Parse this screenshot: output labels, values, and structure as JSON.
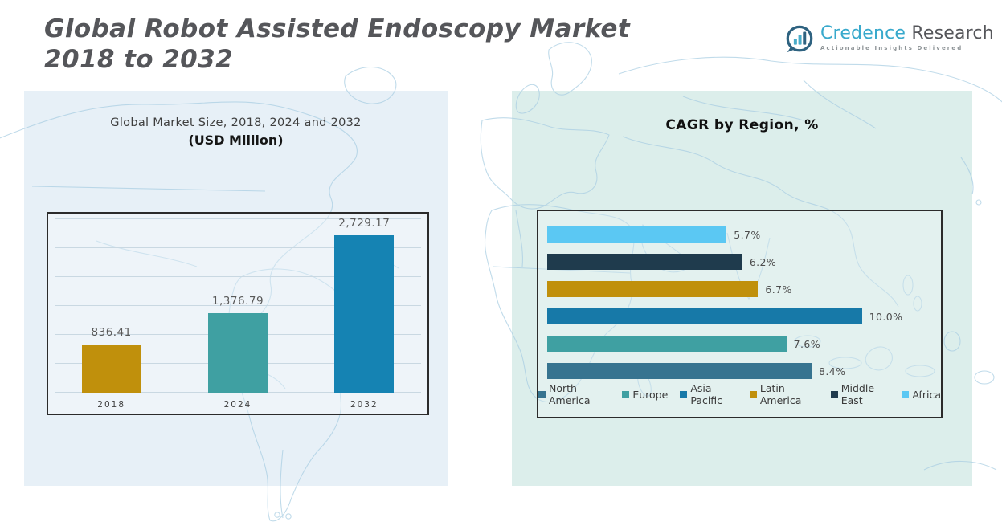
{
  "header": {
    "title_line1": "Global Robot Assisted Endoscopy Market",
    "title_line2": "2018 to 2032"
  },
  "logo": {
    "brand_primary": "Credence",
    "brand_secondary": "Research",
    "tagline": "Actionable Insights Delivered"
  },
  "colors": {
    "left_panel": "#E7F0F7",
    "right_panel": "#DCEEEB",
    "brand_teal": "#38A9CC",
    "title_gray": "#55565A",
    "map_line": "#ABCFE3",
    "chart_border": "#2B2B2B"
  },
  "chart_data": [
    {
      "type": "bar",
      "title": "Global Market Size, 2018, 2024 and 2032",
      "subtitle": "(USD Million)",
      "categories": [
        "2018",
        "2024",
        "2032"
      ],
      "values": [
        836.41,
        1376.79,
        2729.17
      ],
      "value_labels": [
        "836.41",
        "1,376.79",
        "2,729.17"
      ],
      "colors": [
        "#C0900C",
        "#3FA0A2",
        "#1583B3"
      ],
      "xlabel": "",
      "ylabel": "",
      "ylim": [
        0,
        3000
      ],
      "gridline_step": 500,
      "grid": true,
      "legend_position": "none"
    },
    {
      "type": "bar-horizontal",
      "title": "CAGR by Region, %",
      "rows": [
        {
          "region": "Africa",
          "value": 5.7,
          "label": "5.7%",
          "color": "#5BC8F3"
        },
        {
          "region": "Middle East",
          "value": 6.2,
          "label": "6.2%",
          "color": "#1F3B4D"
        },
        {
          "region": "Latin America",
          "value": 6.7,
          "label": "6.7%",
          "color": "#C0900C"
        },
        {
          "region": "Asia Pacific",
          "value": 10.0,
          "label": "10.0%",
          "color": "#1779A8"
        },
        {
          "region": "Europe",
          "value": 7.6,
          "label": "7.6%",
          "color": "#3FA0A2"
        },
        {
          "region": "North America",
          "value": 8.4,
          "label": "8.4%",
          "color": "#377490"
        }
      ],
      "xlim": [
        0,
        12
      ],
      "grid": false,
      "legend_position": "bottom",
      "legend": [
        {
          "label": "North America",
          "color": "#377490"
        },
        {
          "label": "Europe",
          "color": "#3FA0A2"
        },
        {
          "label": "Asia Pacific",
          "color": "#1779A8"
        },
        {
          "label": "Latin America",
          "color": "#C0900C"
        },
        {
          "label": "Middle East",
          "color": "#1F3B4D"
        },
        {
          "label": "Africa",
          "color": "#5BC8F3"
        }
      ]
    }
  ]
}
